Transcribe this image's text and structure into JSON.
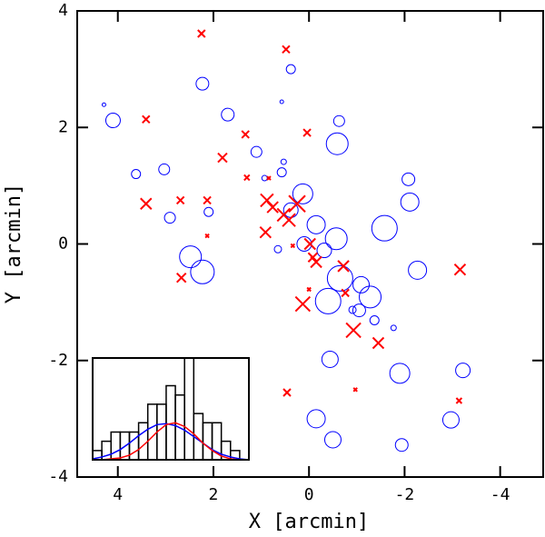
{
  "chart_data": [
    {
      "type": "scatter",
      "xlabel": "X [arcmin]",
      "ylabel": "Y [arcmin]",
      "xlim": [
        4.85,
        -4.9
      ],
      "ylim": [
        -4,
        4
      ],
      "xticks": [
        4,
        2,
        0,
        -2,
        -4
      ],
      "yticks": [
        -4,
        -2,
        0,
        2,
        4
      ],
      "series": [
        {
          "marker": "circle",
          "color": "#0000ff",
          "x": [
            4.29,
            4.1,
            2.23,
            0.38,
            0.57,
            1.7,
            -0.63,
            -0.59,
            3.62,
            3.03,
            1.1,
            0.53,
            0.57,
            0.93,
            2.91,
            2.1,
            0.13,
            0.38,
            -0.15,
            -0.57,
            -0.32,
            0.1,
            -1.58,
            -2.08,
            -2.11,
            -2.27,
            2.48,
            2.23,
            0.65,
            -0.65,
            -0.4,
            -1.09,
            -1.28,
            -1.05,
            -0.91,
            -1.37,
            -1.77,
            -0.44,
            -1.9,
            -3.22,
            -0.15,
            -0.5,
            -1.94,
            -2.97
          ],
          "values": [
            2.39,
            2.12,
            2.75,
            3.0,
            2.44,
            2.22,
            2.11,
            1.72,
            1.2,
            1.28,
            1.58,
            1.41,
            1.23,
            1.13,
            0.45,
            0.55,
            0.86,
            0.58,
            0.33,
            0.09,
            -0.11,
            0,
            0.27,
            1.11,
            0.72,
            -0.45,
            -0.22,
            -0.48,
            -0.09,
            -0.59,
            -0.98,
            -0.7,
            -0.91,
            -1.14,
            -1.13,
            -1.31,
            -1.44,
            -1.98,
            -2.22,
            -2.17,
            -3.0,
            -3.36,
            -3.45,
            -3.02
          ],
          "sizes": [
            2,
            8,
            7,
            5,
            2,
            7,
            6,
            12,
            5,
            6,
            6,
            3,
            5,
            3,
            6,
            5,
            11,
            8,
            10,
            12,
            8,
            8,
            14,
            7,
            10,
            10,
            12,
            13,
            4,
            14,
            14,
            9,
            12,
            7,
            4,
            5,
            3,
            9,
            11,
            8,
            10,
            9,
            7,
            9
          ]
        },
        {
          "marker": "cross",
          "color": "#ff0000",
          "x": [
            2.25,
            0.48,
            3.41,
            0.04,
            1.33,
            1.81,
            1.3,
            0.84,
            3.41,
            2.69,
            2.13,
            0.88,
            0.76,
            0.53,
            0.42,
            0.25,
            0.91,
            2.13,
            0.34,
            -0.02,
            -0.08,
            -0.15,
            0,
            2.67,
            -0.72,
            -0.76,
            0.13,
            -0.93,
            -1.45,
            0.46,
            -0.97,
            -3.16,
            -3.14
          ],
          "values": [
            3.61,
            3.34,
            2.14,
            1.91,
            1.88,
            1.48,
            1.14,
            1.13,
            0.69,
            0.75,
            0.75,
            0.75,
            0.63,
            0.5,
            0.41,
            0.69,
            0.2,
            0.14,
            -0.03,
            0,
            -0.23,
            -0.31,
            -0.78,
            -0.58,
            -0.38,
            -0.84,
            -1.03,
            -1.48,
            -1.7,
            -2.55,
            -2.5,
            -0.44,
            -2.69
          ],
          "sizes": [
            4,
            4,
            4,
            4,
            4,
            5,
            3,
            2,
            6,
            4,
            4,
            7,
            6,
            7,
            7,
            9,
            6,
            2,
            2,
            6,
            5,
            6,
            2,
            5,
            6,
            4,
            8,
            8,
            6,
            4,
            2,
            6,
            3
          ]
        }
      ]
    },
    {
      "type": "histogram",
      "xlim": [
        0,
        17
      ],
      "ylim": [
        0,
        11
      ],
      "bins": [
        0,
        1,
        2,
        3,
        4,
        5,
        6,
        7,
        8,
        9,
        10,
        11,
        12,
        13,
        14,
        15,
        16,
        17
      ],
      "values": [
        1,
        2,
        3,
        3,
        3,
        4,
        6,
        6,
        8,
        7,
        11,
        5,
        4,
        4,
        2,
        1,
        0
      ],
      "color": "#000000",
      "series": [
        {
          "color": "#0000ff",
          "x": [
            0,
            1,
            2,
            3,
            4,
            5,
            6,
            7,
            8,
            9,
            10,
            11,
            12,
            13,
            14,
            15,
            16,
            17
          ],
          "values": [
            0.1,
            0.3,
            0.6,
            1.1,
            1.8,
            2.6,
            3.3,
            3.8,
            3.9,
            3.7,
            3.2,
            2.5,
            1.8,
            1.1,
            0.6,
            0.3,
            0.1,
            0
          ]
        },
        {
          "color": "#ff0000",
          "x": [
            0,
            1,
            2,
            3,
            4,
            5,
            6,
            7,
            8,
            9,
            10,
            11,
            12,
            13,
            14,
            15,
            16,
            17
          ],
          "values": [
            0,
            0,
            0.1,
            0.2,
            0.5,
            1.1,
            2.0,
            3.0,
            3.8,
            4.0,
            3.6,
            2.8,
            1.8,
            1.0,
            0.4,
            0.1,
            0,
            0
          ]
        }
      ]
    }
  ]
}
